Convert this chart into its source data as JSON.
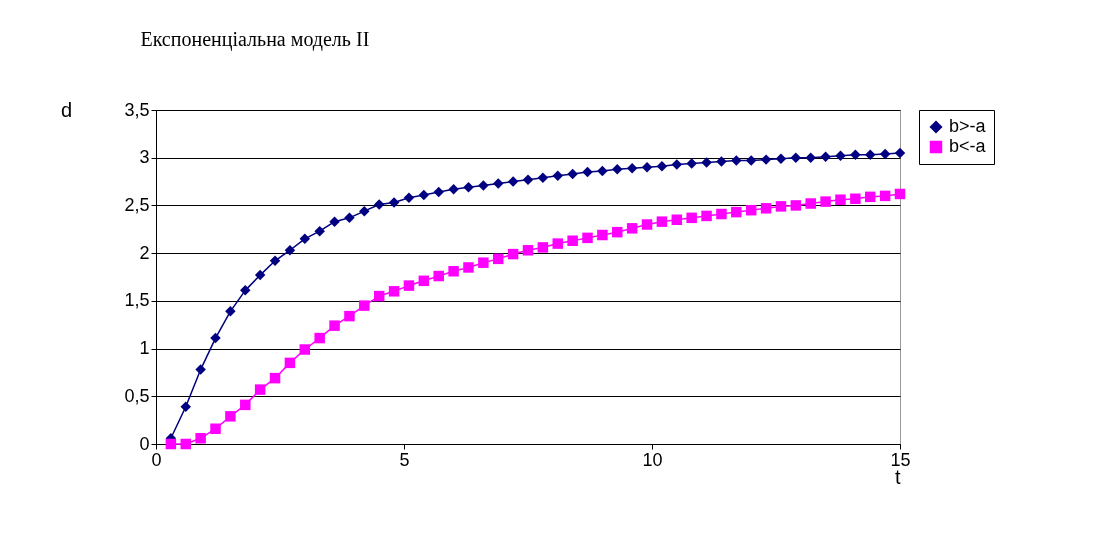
{
  "chart_data": {
    "type": "line",
    "title": "Експоненціальна модель II",
    "xlabel": "t",
    "ylabel": "d",
    "x": [
      0.3,
      0.6,
      0.9,
      1.2,
      1.5,
      1.8,
      2.1,
      2.4,
      2.7,
      3.0,
      3.3,
      3.6,
      3.9,
      4.2,
      4.5,
      4.8,
      5.1,
      5.4,
      5.7,
      6.0,
      6.3,
      6.6,
      6.9,
      7.2,
      7.5,
      7.8,
      8.1,
      8.4,
      8.7,
      9.0,
      9.3,
      9.6,
      9.9,
      10.2,
      10.5,
      10.8,
      11.1,
      11.4,
      11.7,
      12.0,
      12.3,
      12.6,
      12.9,
      13.2,
      13.5,
      13.8,
      14.1,
      14.4,
      14.7,
      15.0
    ],
    "series": [
      {
        "name": "b>-a",
        "color": "#000080",
        "marker": "diamond",
        "values": [
          0.06,
          0.39,
          0.78,
          1.11,
          1.39,
          1.61,
          1.77,
          1.92,
          2.03,
          2.15,
          2.23,
          2.33,
          2.37,
          2.44,
          2.51,
          2.53,
          2.58,
          2.61,
          2.64,
          2.67,
          2.69,
          2.71,
          2.73,
          2.75,
          2.77,
          2.79,
          2.81,
          2.83,
          2.85,
          2.86,
          2.88,
          2.89,
          2.9,
          2.91,
          2.93,
          2.94,
          2.95,
          2.96,
          2.97,
          2.97,
          2.98,
          2.99,
          3.0,
          3.0,
          3.01,
          3.02,
          3.03,
          3.03,
          3.04,
          3.05
        ]
      },
      {
        "name": "b<-a",
        "color": "#ff00ff",
        "marker": "square",
        "values": [
          0.0,
          0.0,
          0.06,
          0.16,
          0.29,
          0.41,
          0.57,
          0.69,
          0.85,
          0.99,
          1.11,
          1.24,
          1.34,
          1.45,
          1.55,
          1.6,
          1.66,
          1.71,
          1.76,
          1.81,
          1.85,
          1.9,
          1.94,
          1.99,
          2.03,
          2.06,
          2.1,
          2.13,
          2.16,
          2.19,
          2.22,
          2.26,
          2.3,
          2.33,
          2.35,
          2.37,
          2.39,
          2.41,
          2.43,
          2.45,
          2.47,
          2.49,
          2.5,
          2.52,
          2.54,
          2.56,
          2.57,
          2.59,
          2.6,
          2.62
        ]
      }
    ],
    "xlim": [
      0,
      15
    ],
    "xticks": [
      0,
      5,
      10,
      15
    ],
    "ylim": [
      0,
      3.5
    ],
    "yticks": [
      0,
      {
        "value": 0.5,
        "label": "0,5"
      },
      1,
      {
        "value": 1.5,
        "label": "1,5"
      },
      2,
      {
        "value": 2.5,
        "label": "2,5"
      },
      3,
      {
        "value": 3.5,
        "label": "3,5"
      }
    ],
    "grid": "y",
    "legend": "right",
    "line_style": "solid"
  }
}
